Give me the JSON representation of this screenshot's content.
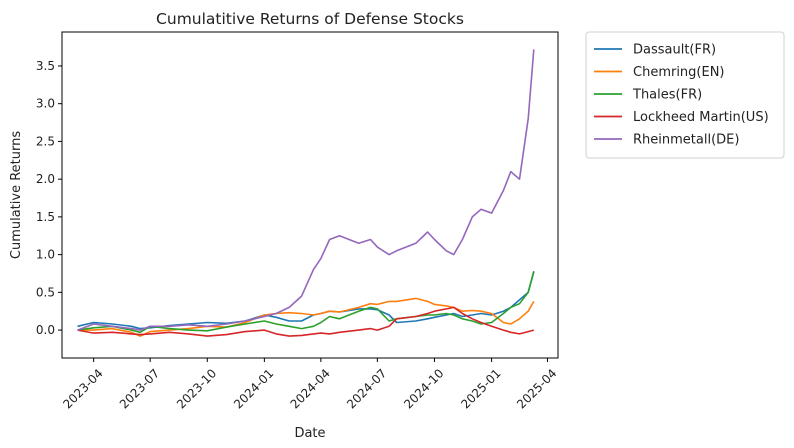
{
  "chart_data": {
    "type": "line",
    "title": "Cumulatitive Returns of Defense Stocks",
    "xlabel": "Date",
    "ylabel": "Cumulative Returns",
    "x_ticks": [
      "2023-04",
      "2023-07",
      "2023-10",
      "2024-01",
      "2024-04",
      "2024-07",
      "2024-10",
      "2025-01",
      "2025-04"
    ],
    "y_ticks": [
      "0.0",
      "0.5",
      "1.0",
      "1.5",
      "2.0",
      "2.5",
      "3.0",
      "3.5"
    ],
    "xlim": [
      "2023-02-09",
      "2025-04-18"
    ],
    "ylim": [
      -0.37,
      3.95
    ],
    "grid": false,
    "legend_position": "outside-top-right",
    "x": [
      "2023-03-06",
      "2023-04-01",
      "2023-05-01",
      "2023-06-01",
      "2023-06-15",
      "2023-07-01",
      "2023-08-01",
      "2023-09-01",
      "2023-10-01",
      "2023-11-01",
      "2023-12-01",
      "2024-01-01",
      "2024-01-20",
      "2024-02-10",
      "2024-03-01",
      "2024-03-20",
      "2024-04-01",
      "2024-04-15",
      "2024-05-01",
      "2024-06-01",
      "2024-06-20",
      "2024-07-01",
      "2024-07-20",
      "2024-08-01",
      "2024-09-01",
      "2024-09-20",
      "2024-10-01",
      "2024-10-20",
      "2024-11-01",
      "2024-11-15",
      "2024-12-01",
      "2024-12-15",
      "2025-01-01",
      "2025-01-20",
      "2025-02-01",
      "2025-02-15",
      "2025-03-01",
      "2025-03-10"
    ],
    "series": [
      {
        "name": "Dassault(FR)",
        "color": "#1f77b4",
        "values": [
          0.05,
          0.1,
          0.08,
          0.05,
          0.02,
          0.03,
          0.06,
          0.08,
          0.1,
          0.09,
          0.12,
          0.2,
          0.17,
          0.12,
          0.12,
          0.2,
          0.22,
          0.25,
          0.24,
          0.28,
          0.28,
          0.27,
          0.2,
          0.1,
          0.12,
          0.15,
          0.17,
          0.2,
          0.22,
          0.18,
          0.2,
          0.22,
          0.2,
          0.25,
          0.3,
          0.4,
          0.5,
          0.77
        ]
      },
      {
        "name": "Chemring(EN)",
        "color": "#ff7f0e",
        "values": [
          0.0,
          0.0,
          0.02,
          -0.03,
          -0.08,
          -0.02,
          0.0,
          0.02,
          0.05,
          0.04,
          0.1,
          0.2,
          0.22,
          0.23,
          0.22,
          0.2,
          0.22,
          0.25,
          0.24,
          0.3,
          0.35,
          0.34,
          0.38,
          0.38,
          0.42,
          0.38,
          0.34,
          0.32,
          0.3,
          0.25,
          0.26,
          0.25,
          0.22,
          0.1,
          0.08,
          0.15,
          0.25,
          0.38
        ]
      },
      {
        "name": "Thales(FR)",
        "color": "#2ca02c",
        "values": [
          0.0,
          0.03,
          0.05,
          0.0,
          -0.03,
          0.05,
          0.02,
          0.0,
          -0.01,
          0.04,
          0.08,
          0.12,
          0.08,
          0.05,
          0.02,
          0.05,
          0.1,
          0.18,
          0.15,
          0.25,
          0.3,
          0.28,
          0.12,
          0.15,
          0.18,
          0.2,
          0.2,
          0.22,
          0.2,
          0.15,
          0.12,
          0.08,
          0.1,
          0.22,
          0.3,
          0.35,
          0.5,
          0.78
        ]
      },
      {
        "name": "Lockheed Martin(US)",
        "color": "#d62728",
        "values": [
          0.0,
          -0.04,
          -0.03,
          -0.05,
          -0.06,
          -0.05,
          -0.03,
          -0.05,
          -0.08,
          -0.06,
          -0.02,
          0.0,
          -0.05,
          -0.08,
          -0.07,
          -0.05,
          -0.04,
          -0.05,
          -0.03,
          0.0,
          0.02,
          0.0,
          0.05,
          0.15,
          0.18,
          0.22,
          0.25,
          0.28,
          0.3,
          0.22,
          0.15,
          0.1,
          0.05,
          0.0,
          -0.03,
          -0.05,
          -0.02,
          0.0
        ]
      },
      {
        "name": "Rheinmetall(DE)",
        "color": "#9467bd",
        "values": [
          0.0,
          0.08,
          0.05,
          0.02,
          0.0,
          0.05,
          0.05,
          0.07,
          0.05,
          0.08,
          0.12,
          0.18,
          0.22,
          0.3,
          0.45,
          0.8,
          0.95,
          1.2,
          1.25,
          1.15,
          1.2,
          1.1,
          1.0,
          1.05,
          1.15,
          1.3,
          1.2,
          1.05,
          1.0,
          1.2,
          1.5,
          1.6,
          1.55,
          1.85,
          2.1,
          2.0,
          2.8,
          3.72
        ]
      }
    ]
  }
}
